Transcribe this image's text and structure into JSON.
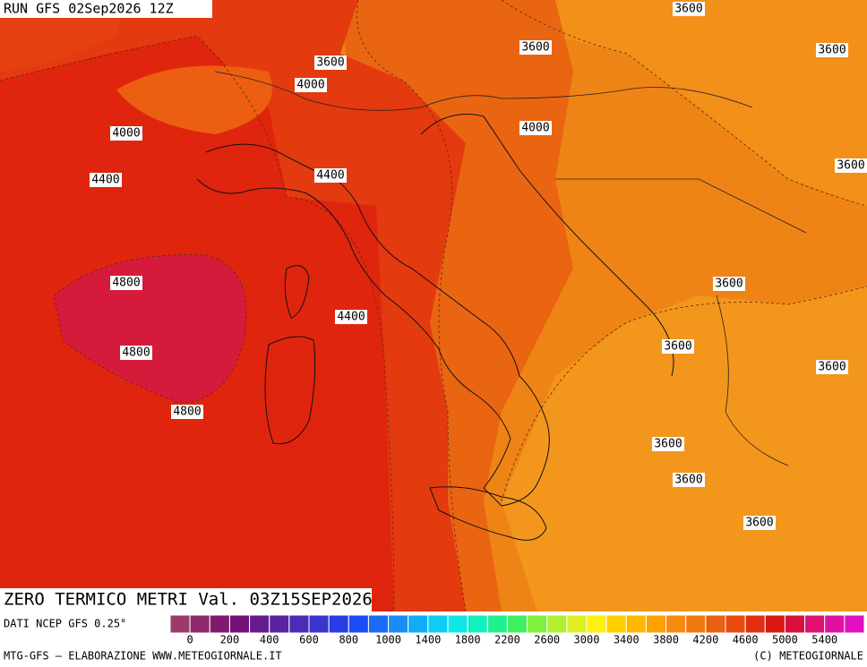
{
  "header": {
    "run": "RUN GFS 02Sep2026 12Z"
  },
  "map": {
    "contour_labels": [
      3600,
      3600,
      3600,
      3600,
      4000,
      4000,
      4000,
      3600,
      4400,
      4400,
      4800,
      3600,
      4400,
      4800,
      3600,
      3600,
      4800,
      3600,
      3600,
      3600
    ]
  },
  "title": "ZERO TERMICO METRI Val. 03Z15SEP2026",
  "source": "DATI NCEP GFS 0.25°",
  "colorbar": {
    "colors": [
      "#9c3a6a",
      "#8e2a6a",
      "#801a6e",
      "#74127a",
      "#661c8c",
      "#5a24a0",
      "#4a2cb8",
      "#3a34d0",
      "#2a3ce8",
      "#1a4cf8",
      "#1a6cf8",
      "#1a8cf8",
      "#10acf4",
      "#10ccf0",
      "#10e8e8",
      "#10f0c0",
      "#20f090",
      "#40f060",
      "#80f040",
      "#b0f030",
      "#e0f020",
      "#fff010",
      "#ffd000",
      "#ffb800",
      "#ffa000",
      "#f88a10",
      "#f07810",
      "#e86010",
      "#e84a10",
      "#e03010",
      "#d81810",
      "#d81040",
      "#e01070",
      "#e010a0",
      "#e010c0"
    ],
    "ticks": [
      0,
      200,
      400,
      600,
      800,
      1000,
      1400,
      1800,
      2200,
      2600,
      3000,
      3400,
      3800,
      4200,
      4600,
      5000,
      5400
    ]
  },
  "footer": {
    "left": "MTG-GFS — ELABORAZIONE WWW.METEOGIORNALE.IT",
    "right": "(C) METEOGIORNALE"
  }
}
